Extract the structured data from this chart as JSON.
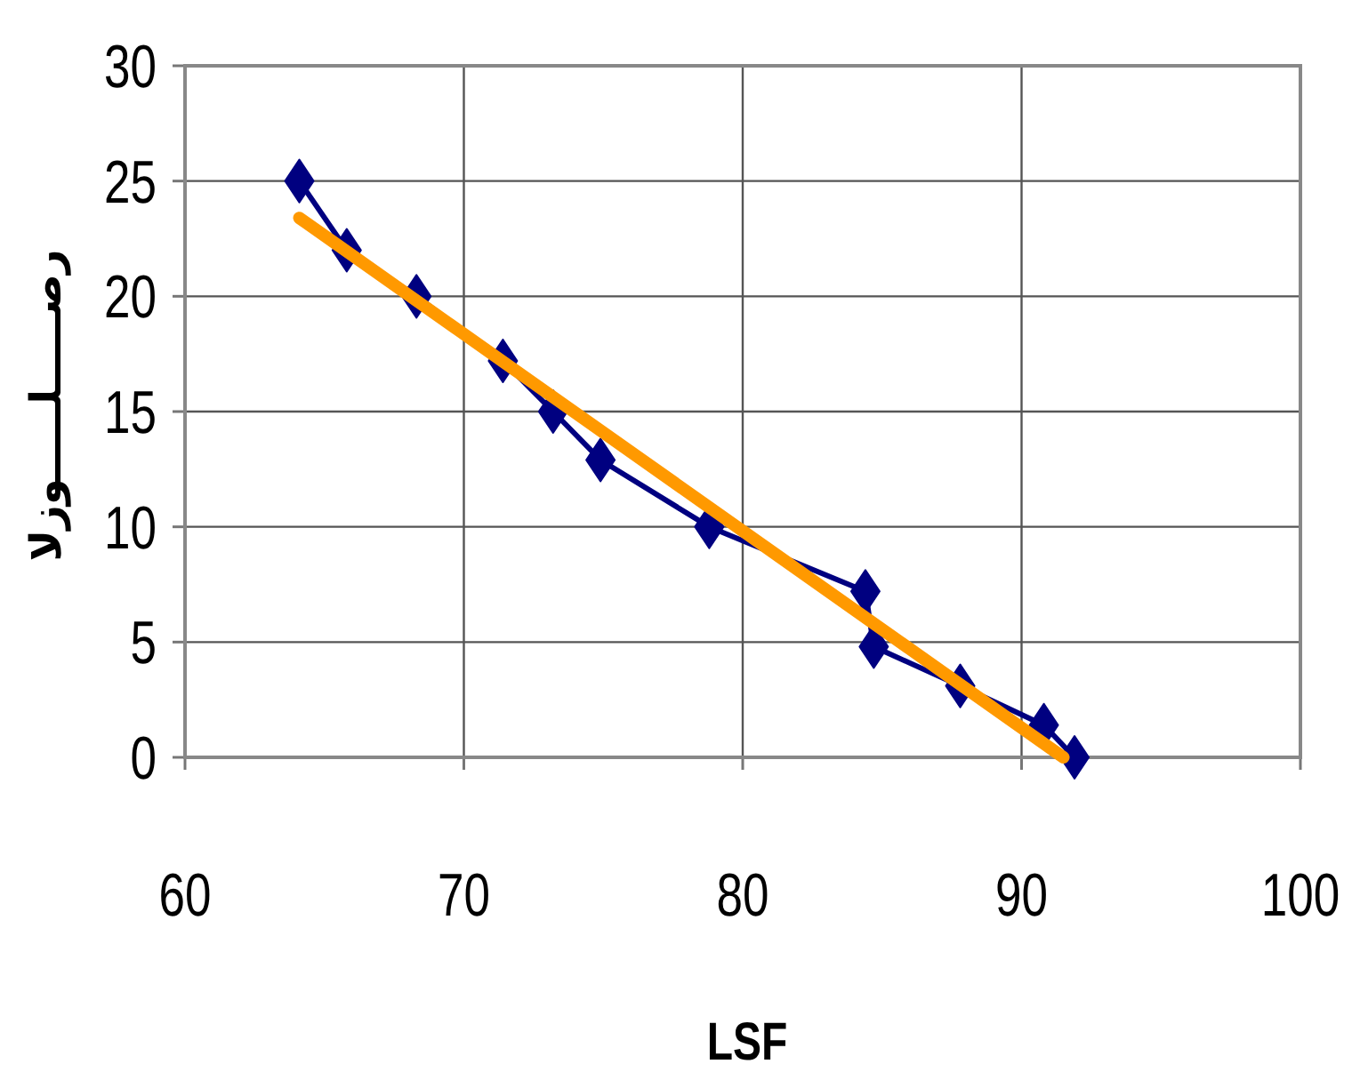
{
  "chart_data": {
    "type": "line",
    "xlabel": "LSF",
    "ylabel": "رصـــــلـــــوزلا",
    "xlim": [
      60,
      100
    ],
    "ylim": [
      0,
      30
    ],
    "xticks": [
      60,
      70,
      80,
      90,
      100
    ],
    "yticks": [
      0,
      5,
      10,
      15,
      20,
      25,
      30
    ],
    "grid": true,
    "series": [
      {
        "color": "#000080",
        "marker": "diamond",
        "x": [
          64.1,
          65.8,
          68.3,
          71.4,
          73.2,
          74.9,
          78.8,
          84.4,
          84.7,
          87.8,
          90.8,
          91.9
        ],
        "values": [
          25,
          22,
          20,
          17.2,
          15,
          12.9,
          10,
          7.2,
          4.8,
          3.1,
          1.4,
          0
        ]
      },
      {
        "color": "#ff9900",
        "marker": "none",
        "x": [
          64.1,
          91.5
        ],
        "values": [
          23.4,
          0
        ]
      }
    ]
  }
}
